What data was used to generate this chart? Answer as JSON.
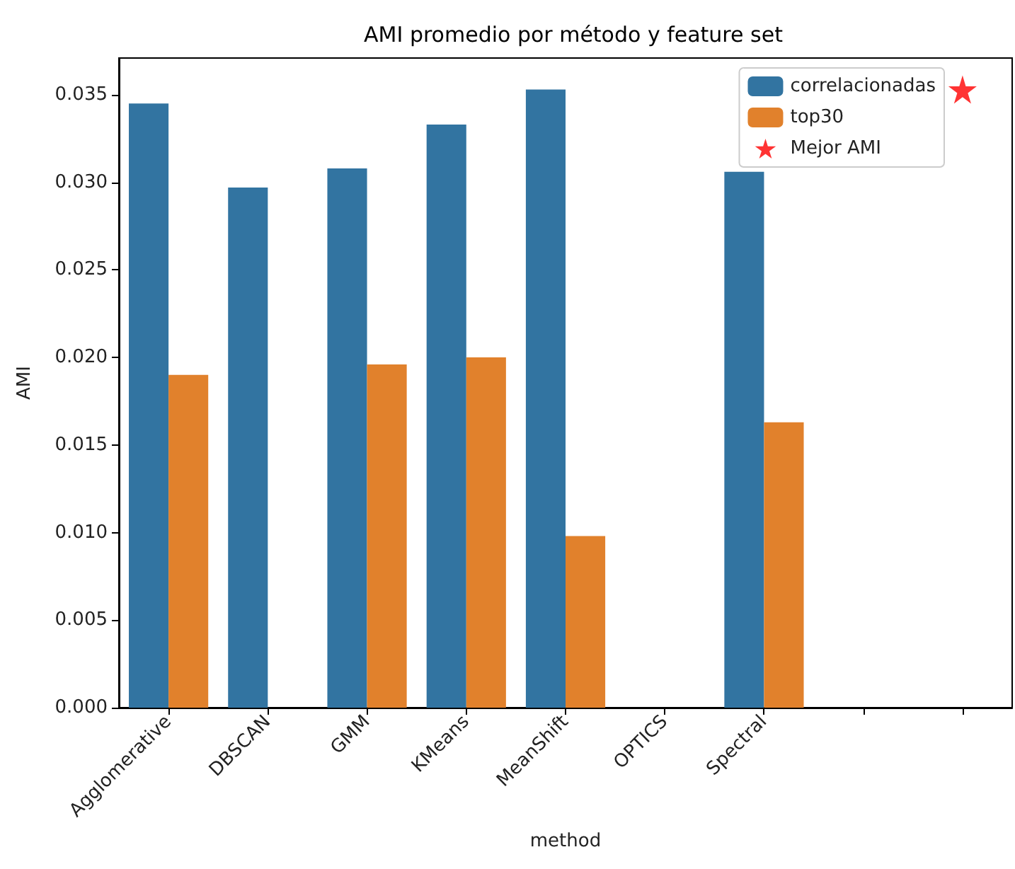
{
  "chart_data": {
    "type": "bar",
    "title": "AMI promedio por método y feature set",
    "xlabel": "method",
    "ylabel": "AMI",
    "categories": [
      "Agglomerative",
      "DBSCAN",
      "GMM",
      "KMeans",
      "MeanShift",
      "OPTICS",
      "Spectral",
      null,
      null
    ],
    "series": [
      {
        "name": "correlacionadas",
        "color": "#3274a1",
        "values": [
          0.0345,
          0.0297,
          0.0308,
          0.0333,
          0.0353,
          null,
          0.0306,
          null,
          null
        ]
      },
      {
        "name": "top30",
        "color": "#e1812c",
        "values": [
          0.019,
          null,
          0.0196,
          0.02,
          0.0098,
          null,
          0.0163,
          null,
          null
        ]
      },
      {
        "name": "Mejor AMI",
        "type": "scatter",
        "marker": "star",
        "color": "#ff0000",
        "values": [
          null,
          null,
          null,
          null,
          null,
          null,
          null,
          null,
          0.0353
        ]
      }
    ],
    "ylim": [
      0,
      0.0371
    ],
    "yticks": [
      {
        "value": 0,
        "label": "0.000"
      },
      {
        "value": 0.005,
        "label": "0.005"
      },
      {
        "value": 0.01,
        "label": "0.010"
      },
      {
        "value": 0.015,
        "label": "0.015"
      },
      {
        "value": 0.02,
        "label": "0.020"
      },
      {
        "value": 0.025,
        "label": "0.025"
      },
      {
        "value": 0.03,
        "label": "0.030"
      },
      {
        "value": 0.035,
        "label": "0.035"
      }
    ],
    "grid": false,
    "legend": "top right"
  }
}
